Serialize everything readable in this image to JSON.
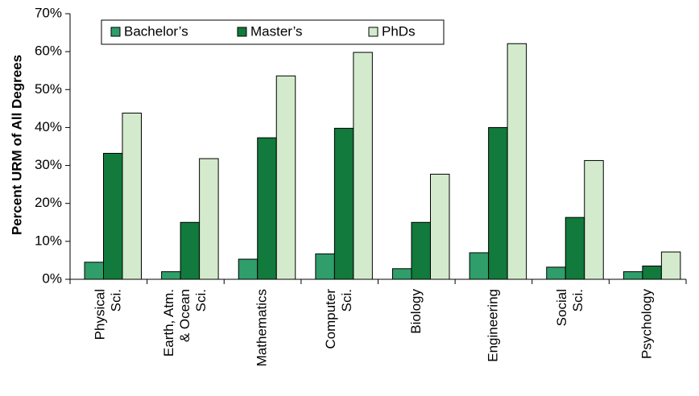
{
  "chart_data": {
    "type": "bar",
    "title": "",
    "xlabel": "",
    "ylabel": "Percent URM of All Degrees",
    "ylim": [
      0,
      70
    ],
    "yticks": [
      "0%",
      "10%",
      "20%",
      "30%",
      "40%",
      "50%",
      "60%",
      "70%"
    ],
    "categories": [
      [
        "Physical",
        "Sci."
      ],
      [
        "Earth, Atm.",
        "& Ocean",
        "Sci."
      ],
      [
        "Mathematics"
      ],
      [
        "Computer",
        "Sci."
      ],
      [
        "Biology"
      ],
      [
        "Engineering"
      ],
      [
        "Social",
        "Sci."
      ],
      [
        "Psychology"
      ]
    ],
    "series": [
      {
        "name": "Bachelor’s",
        "color": "#2f9e6a",
        "values": [
          4.5,
          2,
          5.3,
          6.7,
          2.8,
          7,
          3.2,
          2
        ]
      },
      {
        "name": "Master’s",
        "color": "#117a3c",
        "values": [
          33.2,
          15,
          37.3,
          39.8,
          15,
          40,
          16.3,
          3.5
        ]
      },
      {
        "name": "PhDs",
        "color": "#d3ebcc",
        "values": [
          43.8,
          31.8,
          53.6,
          59.8,
          27.7,
          62.1,
          31.3,
          7.2
        ]
      }
    ],
    "legend": {
      "position": "top-left"
    },
    "grid": false
  }
}
